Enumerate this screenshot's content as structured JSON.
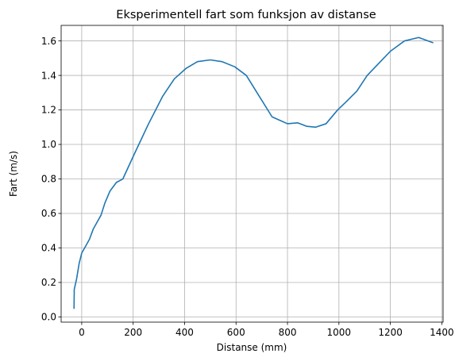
{
  "chart_data": {
    "type": "line",
    "title": "Eksperimentell fart som funksjon av distanse",
    "xlabel": "Distanse (mm)",
    "ylabel": "Fart (m/s)",
    "xlim": [
      -80,
      1405
    ],
    "ylim": [
      -0.03,
      1.69
    ],
    "grid": true,
    "xticks": [
      0,
      200,
      400,
      600,
      800,
      1000,
      1200,
      1400
    ],
    "yticks": [
      0.0,
      0.2,
      0.4,
      0.6,
      0.8,
      1.0,
      1.2,
      1.4,
      1.6
    ],
    "series": [
      {
        "color": "#1f77b4",
        "x": [
          -30,
          -29,
          -20,
          -10,
          0,
          15,
          30,
          45,
          60,
          75,
          90,
          110,
          135,
          160,
          200,
          260,
          315,
          360,
          405,
          450,
          500,
          545,
          595,
          640,
          690,
          740,
          770,
          800,
          840,
          875,
          910,
          950,
          995,
          1030,
          1070,
          1110,
          1155,
          1200,
          1255,
          1310,
          1365
        ],
        "y": [
          0.05,
          0.16,
          0.22,
          0.31,
          0.37,
          0.41,
          0.45,
          0.51,
          0.55,
          0.59,
          0.66,
          0.73,
          0.78,
          0.8,
          0.93,
          1.12,
          1.28,
          1.38,
          1.44,
          1.48,
          1.49,
          1.48,
          1.45,
          1.4,
          1.28,
          1.16,
          1.14,
          1.12,
          1.125,
          1.105,
          1.1,
          1.12,
          1.2,
          1.25,
          1.31,
          1.4,
          1.47,
          1.54,
          1.6,
          1.62,
          1.59
        ]
      }
    ]
  }
}
